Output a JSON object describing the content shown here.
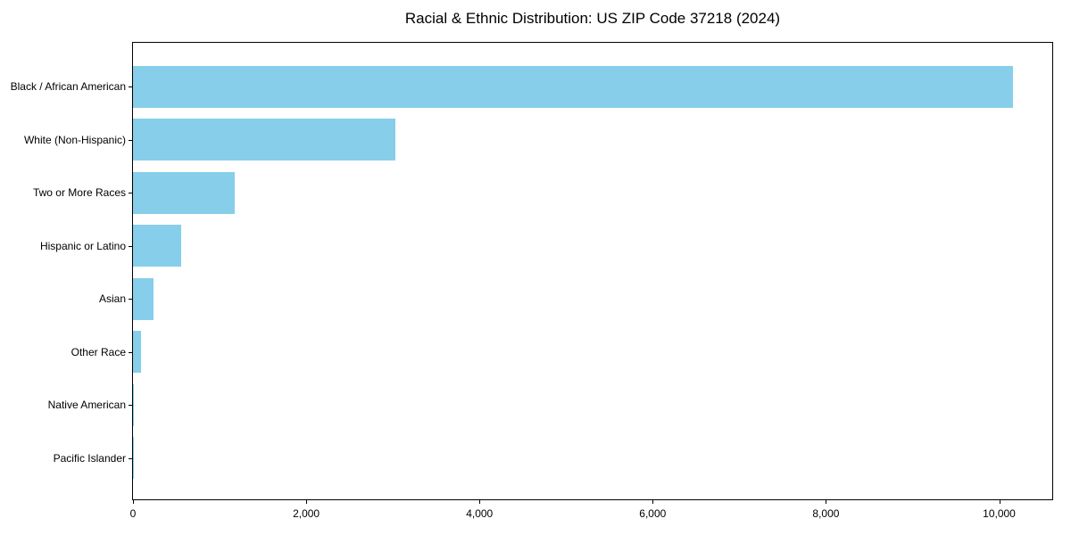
{
  "chart_data": {
    "type": "bar",
    "orientation": "horizontal",
    "title": "Racial & Ethnic Distribution: US ZIP Code 37218 (2024)",
    "categories": [
      "Black / African American",
      "White (Non-Hispanic)",
      "Two or More Races",
      "Hispanic or Latino",
      "Asian",
      "Other Race",
      "Native American",
      "Pacific Islander"
    ],
    "values": [
      10160,
      3026,
      1173,
      556,
      237,
      93,
      15,
      5
    ],
    "bar_color": "#87CEEB",
    "xlabel": "",
    "ylabel": "",
    "xlim": [
      0,
      10613
    ],
    "x_ticks": [
      0,
      2000,
      4000,
      6000,
      8000,
      10000
    ],
    "x_tick_labels": [
      "0",
      "2,000",
      "4,000",
      "6,000",
      "8,000",
      "10,000"
    ],
    "grid": false,
    "legend": null
  }
}
